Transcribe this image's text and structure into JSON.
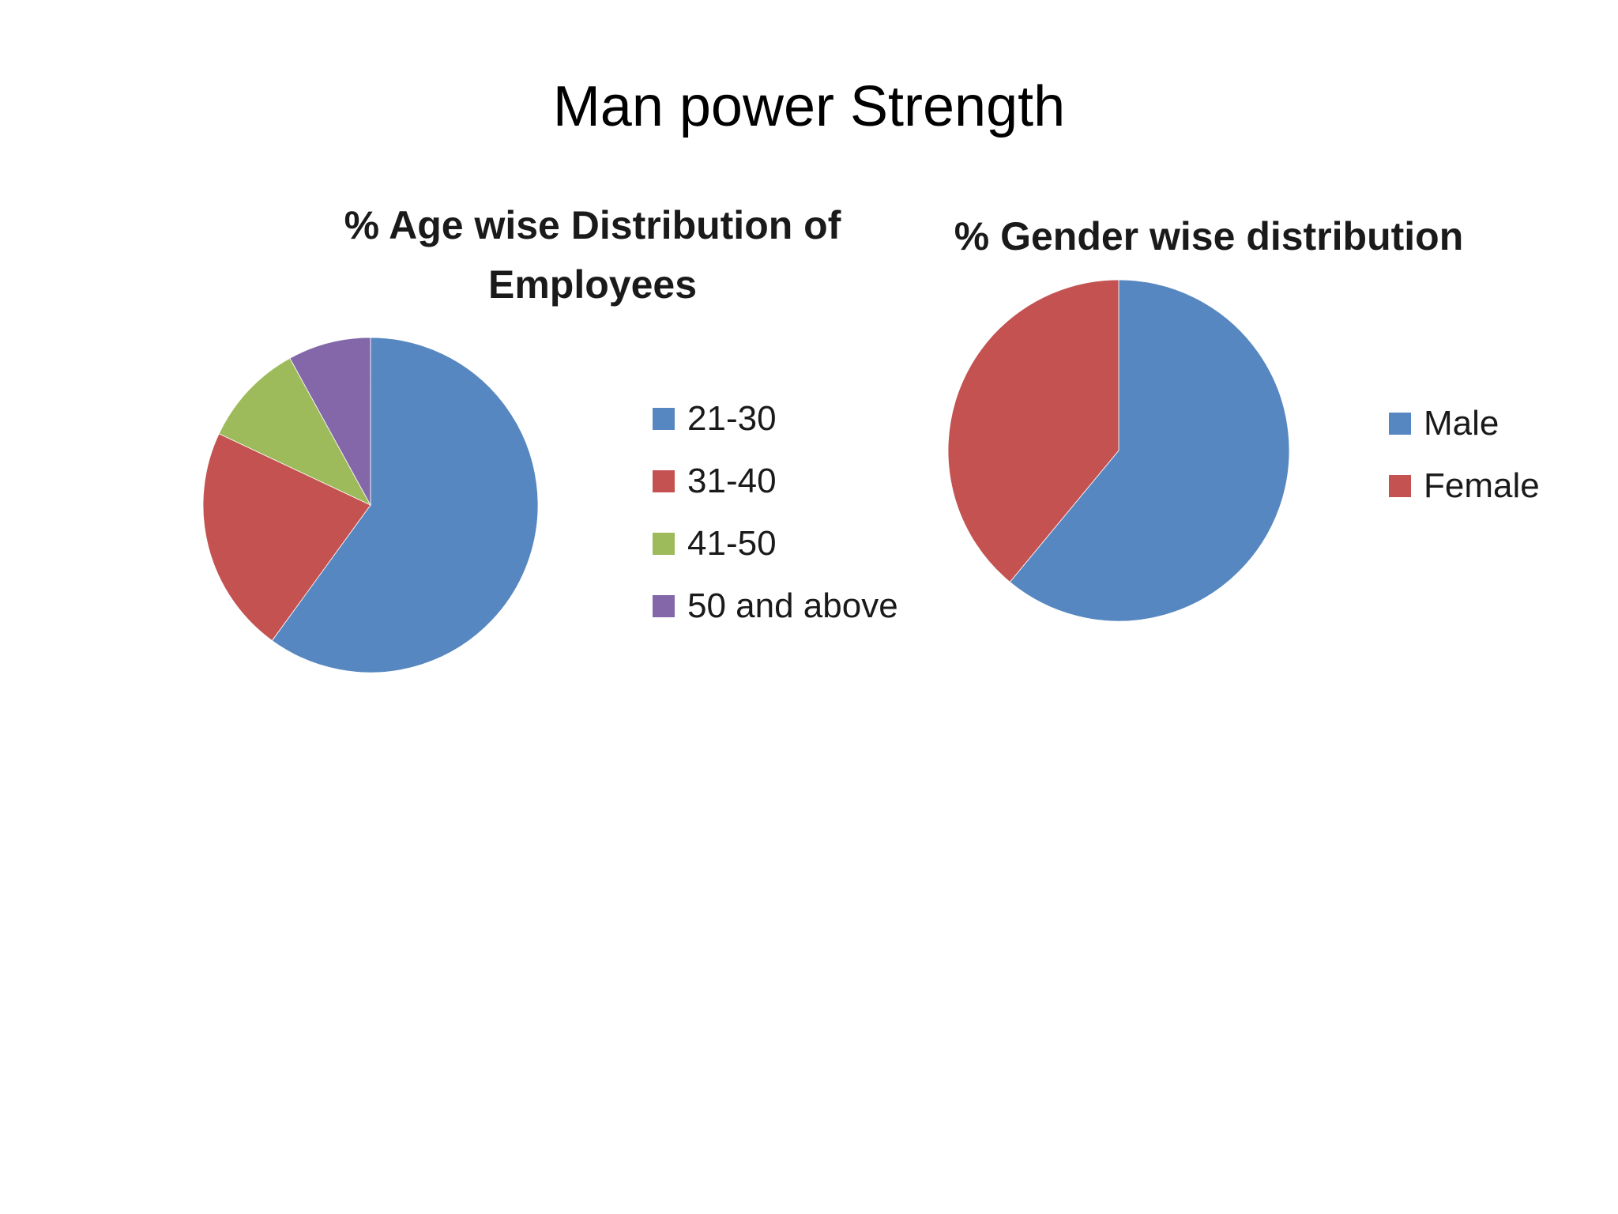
{
  "slide": {
    "title": "Man power Strength"
  },
  "chart_data": [
    {
      "type": "pie",
      "title": "% Age wise Distribution of Employees",
      "categories": [
        "21-30",
        "31-40",
        "41-50",
        "50 and above"
      ],
      "values": [
        60,
        22,
        10,
        8
      ],
      "colors": [
        "#5787C0",
        "#C45251",
        "#9DBB5A",
        "#8467A9"
      ],
      "legend_position": "right"
    },
    {
      "type": "pie",
      "title": "% Gender wise distribution",
      "categories": [
        "Male",
        "Female"
      ],
      "values": [
        61,
        39
      ],
      "colors": [
        "#5787C0",
        "#C45251"
      ],
      "legend_position": "right"
    }
  ]
}
